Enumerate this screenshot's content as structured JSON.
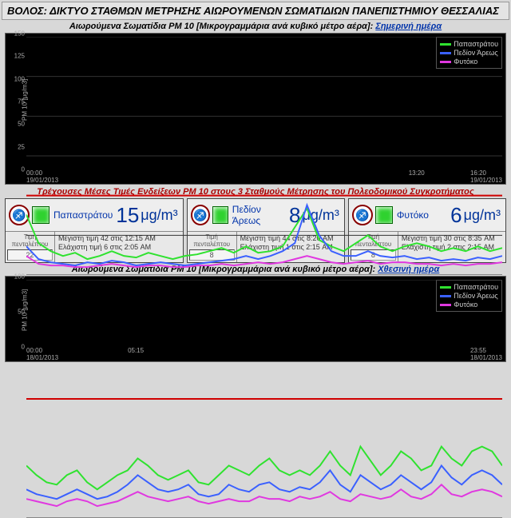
{
  "header": "ΒΟΛΟΣ: ΔΙΚΤΥΟ ΣΤΑΘΜΩΝ ΜΕΤΡΗΣΗΣ ΑΙΩΡΟΥΜΕΝΩΝ ΣΩΜΑΤΙΔΙΩΝ ΠΑΝΕΠΙΣΤΗΜΙΟΥ ΘΕΣΣΑΛΙΑΣ",
  "top_title_a": "Αιωρούμενα Σωματίδια PM 10 [Μικρογραμμάρια ανά κυβικό μέτρο αέρα]: ",
  "top_title_b": "Σημερινή ημέρα",
  "bot_title_a": "Αιωρούμενα Σωματίδια PM 10 [Μικρογραμμάρια ανά κυβικό μέτρο αέρα]: ",
  "bot_title_b": "Χθεσινή ημέρα",
  "stations_head": "Τρέχουσες Μέσες Τιμές Ενδείξεων PM 10 στους 3 Σταθμούς Μέτρησης του Πολεοδομικού Συγκροτήματος",
  "ylabel": "PM 10 [μg/m3]",
  "chart_top": {
    "ylim": [
      0,
      150
    ],
    "yticks": [
      0,
      25,
      50,
      75,
      100,
      125,
      150
    ],
    "threshold": 50,
    "threshold_color": "#d00000",
    "xticks": [
      {
        "p": 0,
        "t": "00:00",
        "d": "19/01/2013"
      },
      {
        "p": 0.82,
        "t": "13:20"
      },
      {
        "p": 1,
        "t": "16:20",
        "d": "19/01/2013"
      }
    ],
    "bg": "#000000",
    "grid": "#333333",
    "series": [
      {
        "name": "Παπαστράτου",
        "color": "#2fe22f",
        "data": [
          38,
          20,
          15,
          12,
          14,
          10,
          12,
          15,
          12,
          11,
          14,
          12,
          10,
          12,
          13,
          15,
          17,
          14,
          18,
          14,
          15,
          18,
          30,
          42,
          22,
          18,
          15,
          20,
          25,
          18,
          15,
          18,
          20,
          18,
          15,
          17,
          15,
          18,
          15,
          17
        ]
      },
      {
        "name": "Πεδίον Άρεως",
        "color": "#3a60ff",
        "data": [
          18,
          10,
          8,
          7,
          6,
          8,
          7,
          9,
          8,
          6,
          7,
          8,
          7,
          6,
          7,
          8,
          9,
          10,
          12,
          10,
          12,
          15,
          20,
          44,
          25,
          15,
          12,
          12,
          15,
          12,
          11,
          12,
          10,
          11,
          9,
          10,
          9,
          11,
          10,
          12
        ]
      },
      {
        "name": "Φυτόκο",
        "color": "#e038e0",
        "data": [
          12,
          7,
          6,
          6,
          5,
          5,
          6,
          7,
          6,
          5,
          6,
          6,
          5,
          5,
          6,
          6,
          7,
          6,
          7,
          8,
          7,
          8,
          10,
          12,
          10,
          8,
          7,
          8,
          9,
          7,
          8,
          8,
          7,
          7,
          6,
          7,
          6,
          7,
          7,
          8
        ]
      }
    ]
  },
  "chart_bot": {
    "ylim": [
      0,
      100
    ],
    "yticks": [
      0,
      50,
      100
    ],
    "threshold": 50,
    "threshold_color": "#d00000",
    "xticks": [
      {
        "p": 0,
        "t": "00:00",
        "d": "18/01/2013"
      },
      {
        "p": 0.23,
        "t": "05:15"
      },
      {
        "p": 1,
        "t": "23:55",
        "d": "18/01/2013"
      }
    ],
    "bg": "#000000",
    "grid": "#333333",
    "series": [
      {
        "name": "Παπαστράτου",
        "color": "#2fe22f",
        "data": [
          22,
          18,
          15,
          14,
          18,
          20,
          15,
          12,
          15,
          18,
          20,
          25,
          22,
          18,
          16,
          18,
          20,
          15,
          14,
          18,
          22,
          20,
          18,
          22,
          25,
          20,
          18,
          20,
          18,
          22,
          28,
          22,
          18,
          30,
          24,
          18,
          22,
          28,
          25,
          20,
          22,
          30,
          25,
          22,
          28,
          30,
          28,
          22
        ]
      },
      {
        "name": "Πεδίον Άρεως",
        "color": "#3a60ff",
        "data": [
          12,
          10,
          9,
          8,
          10,
          12,
          10,
          8,
          9,
          11,
          14,
          18,
          15,
          12,
          11,
          12,
          14,
          10,
          9,
          10,
          14,
          12,
          11,
          14,
          15,
          12,
          11,
          13,
          12,
          15,
          20,
          14,
          11,
          18,
          15,
          12,
          14,
          18,
          15,
          12,
          15,
          22,
          17,
          14,
          18,
          20,
          18,
          14
        ]
      },
      {
        "name": "Φυτόκο",
        "color": "#e038e0",
        "data": [
          8,
          7,
          6,
          5,
          7,
          8,
          7,
          5,
          6,
          7,
          9,
          11,
          9,
          8,
          7,
          8,
          9,
          7,
          6,
          7,
          8,
          7,
          7,
          9,
          8,
          8,
          7,
          9,
          8,
          9,
          11,
          8,
          7,
          10,
          9,
          8,
          9,
          12,
          9,
          8,
          10,
          14,
          10,
          9,
          11,
          12,
          11,
          9
        ]
      }
    ]
  },
  "stations": [
    {
      "name": "Παπαστράτου",
      "value": 15,
      "unit": "μg/m³",
      "five": "22",
      "lamp": "#2fd22f",
      "max": "Μέγιστη τιμή 42 στις 12:15 AM",
      "min": "Ελάχιστη τιμή 6 στις 2:05 AM"
    },
    {
      "name": "Πεδίον Άρεως",
      "value": 8,
      "unit": "μg/m³",
      "five": "8",
      "lamp": "#2fd22f",
      "max": "Μέγιστη τιμή 44 στις 8:20 AM",
      "min": "Ελάχιστη τιμή 1 στις 2:15 AM"
    },
    {
      "name": "Φυτόκο",
      "value": 6,
      "unit": "μg/m³",
      "five": "8",
      "lamp": "#2fd22f",
      "max": "Μέγιστη τιμή 30 στις 8:35 AM",
      "min": "Ελάχιστη τιμή 2 στις 2:15 AM"
    }
  ],
  "five_label": "Τιμή πενταλέπτου"
}
